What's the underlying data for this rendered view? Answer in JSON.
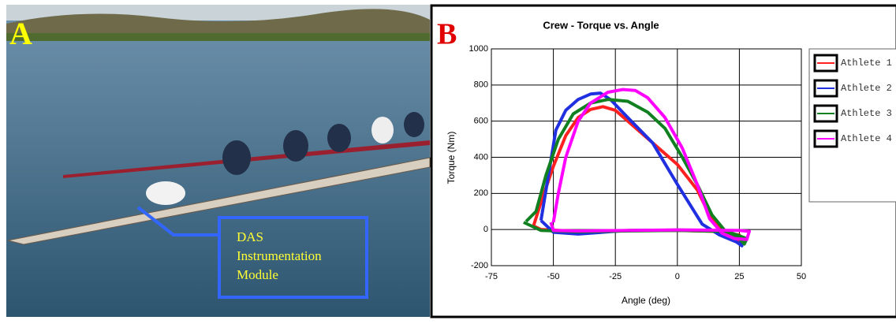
{
  "panels": {
    "a_label": "A",
    "b_label": "B"
  },
  "photo": {
    "annotation": [
      "DAS",
      "Instrumentation",
      "Module"
    ]
  },
  "chart_data": {
    "type": "line",
    "title": "Crew - Torque vs. Angle",
    "x_label": "Angle (deg)",
    "y_label": "Torque (Nm)",
    "xlim": [
      -75,
      50
    ],
    "xticks": [
      -75,
      -50,
      -25,
      0,
      25,
      50
    ],
    "ylim": [
      -200,
      1000
    ],
    "yticks": [
      -200,
      0,
      200,
      400,
      600,
      800,
      1000
    ],
    "grid": true,
    "legend": "right",
    "series": [
      {
        "name": "Athlete 1",
        "color": "#ff2020",
        "x": [
          -58,
          -55,
          -50,
          -45,
          -40,
          -35,
          -30,
          -25,
          -20,
          -10,
          0,
          8,
          13,
          18,
          24,
          26,
          25,
          15,
          0,
          -20,
          -40,
          -55,
          -58
        ],
        "values": [
          20,
          150,
          350,
          520,
          620,
          665,
          680,
          660,
          600,
          480,
          360,
          220,
          80,
          -10,
          -50,
          -70,
          -30,
          -10,
          -5,
          -5,
          -10,
          0,
          20
        ]
      },
      {
        "name": "Athlete 2",
        "color": "#2030e0",
        "x": [
          -55,
          -52,
          -49,
          -45,
          -40,
          -35,
          -31,
          -27,
          -20,
          -10,
          0,
          10,
          17,
          24,
          26,
          25,
          15,
          0,
          -20,
          -40,
          -50,
          -55
        ],
        "values": [
          50,
          300,
          550,
          660,
          720,
          750,
          755,
          720,
          620,
          480,
          250,
          30,
          -30,
          -70,
          -90,
          -40,
          -5,
          -3,
          -5,
          -25,
          -15,
          50
        ]
      },
      {
        "name": "Athlete 3",
        "color": "#108020",
        "x": [
          -61,
          -57,
          -53,
          -48,
          -42,
          -35,
          -28,
          -20,
          -12,
          -5,
          2,
          8,
          14,
          20,
          25,
          27,
          28,
          20,
          0,
          -20,
          -40,
          -55,
          -62
        ],
        "values": [
          45,
          100,
          300,
          500,
          640,
          700,
          720,
          710,
          650,
          560,
          400,
          250,
          80,
          -20,
          -50,
          -80,
          -50,
          -10,
          -5,
          -8,
          -12,
          -5,
          40
        ]
      },
      {
        "name": "Athlete 4",
        "color": "#ff00ff",
        "x": [
          -50,
          -48,
          -45,
          -40,
          -35,
          -28,
          -22,
          -17,
          -12,
          -5,
          2,
          8,
          13,
          18,
          23,
          28,
          29,
          25,
          0,
          -20,
          -40,
          -50,
          -51
        ],
        "values": [
          40,
          200,
          400,
          600,
          700,
          760,
          775,
          770,
          730,
          620,
          450,
          250,
          60,
          -20,
          -50,
          -55,
          -10,
          -5,
          -2,
          -5,
          -8,
          -5,
          40
        ]
      }
    ]
  }
}
